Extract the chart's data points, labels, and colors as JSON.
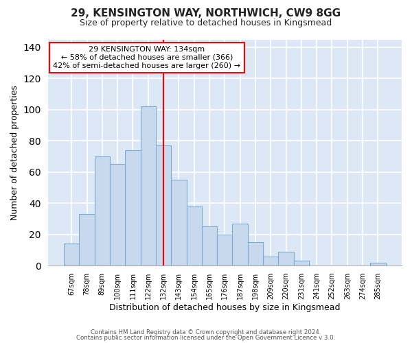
{
  "title1": "29, KENSINGTON WAY, NORTHWICH, CW9 8GG",
  "title2": "Size of property relative to detached houses in Kingsmead",
  "xlabel": "Distribution of detached houses by size in Kingsmead",
  "ylabel": "Number of detached properties",
  "categories": [
    "67sqm",
    "78sqm",
    "89sqm",
    "100sqm",
    "111sqm",
    "122sqm",
    "132sqm",
    "143sqm",
    "154sqm",
    "165sqm",
    "176sqm",
    "187sqm",
    "198sqm",
    "209sqm",
    "220sqm",
    "231sqm",
    "241sqm",
    "252sqm",
    "263sqm",
    "274sqm",
    "285sqm"
  ],
  "values": [
    14,
    33,
    70,
    65,
    74,
    102,
    77,
    55,
    38,
    25,
    20,
    27,
    15,
    6,
    9,
    3,
    0,
    0,
    0,
    0,
    2
  ],
  "bar_color": "#c9d9ed",
  "bar_edge_color": "#7aadd4",
  "red_line_index": 6,
  "ylim": [
    0,
    145
  ],
  "yticks": [
    0,
    20,
    40,
    60,
    80,
    100,
    120,
    140
  ],
  "annotation_line1": "29 KENSINGTON WAY: 134sqm",
  "annotation_line2": "← 58% of detached houses are smaller (366)",
  "annotation_line3": "42% of semi-detached houses are larger (260) →",
  "footer1": "Contains HM Land Registry data © Crown copyright and database right 2024.",
  "footer2": "Contains public sector information licensed under the Open Government Licence v 3.0.",
  "background_color": "#ffffff",
  "plot_bg_color": "#dce8f5",
  "grid_color": "#ffffff"
}
